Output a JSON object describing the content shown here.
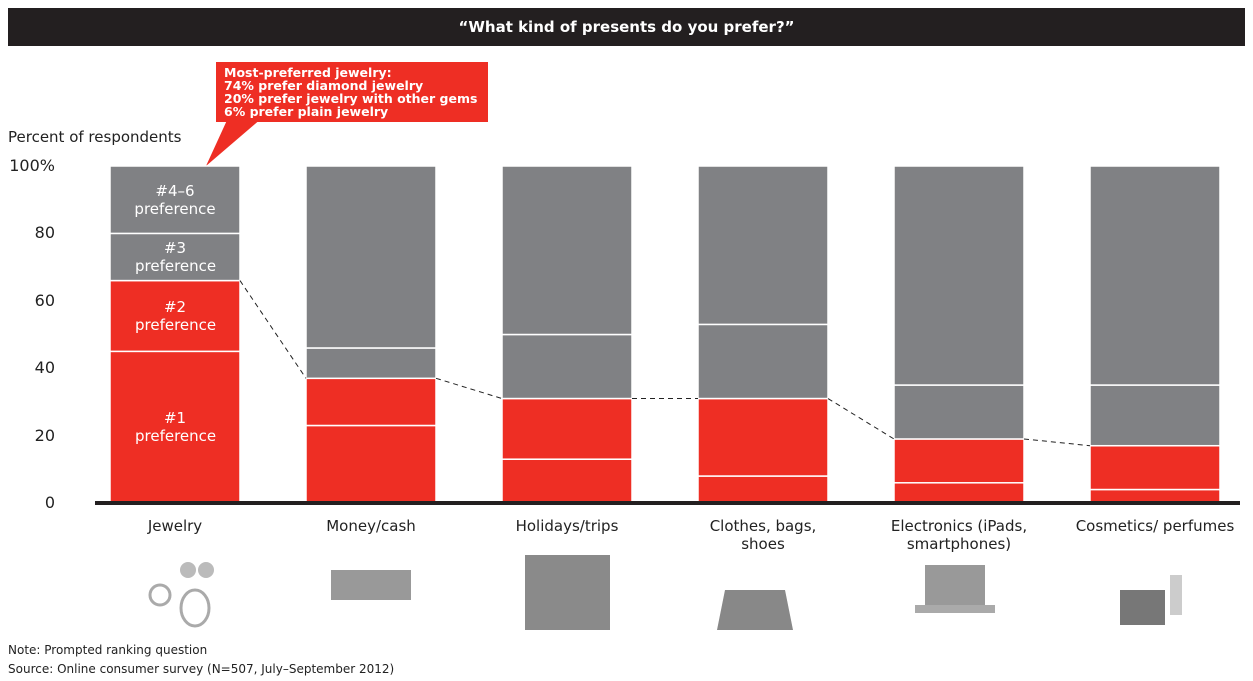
{
  "chart_data": {
    "type": "stacked_bar",
    "title": "“What kind of presents do you prefer?”",
    "y_label": "Percent of respondents",
    "categories": [
      "Jewelry",
      "Money/cash",
      "Holidays/trips",
      "Clothes, bags, shoes",
      "Electronics (iPads, smartphones)",
      "Cosmetics/ perfumes"
    ],
    "series": [
      {
        "name": "#1 preference",
        "color": "#ee2e24",
        "values": [
          45,
          23,
          13,
          8,
          6,
          4
        ]
      },
      {
        "name": "#2 preference",
        "color": "#ee2e24",
        "values": [
          21,
          14,
          18,
          23,
          13,
          13
        ]
      },
      {
        "name": "#3 preference",
        "color": "#808184",
        "values": [
          14,
          9,
          19,
          22,
          16,
          18
        ]
      },
      {
        "name": "#4–6 preference",
        "color": "#808184",
        "values": [
          20,
          54,
          50,
          47,
          65,
          65
        ]
      }
    ],
    "ylim": [
      0,
      100
    ],
    "yticks": [
      0,
      20,
      40,
      60,
      80,
      {
        "value": 100,
        "label": "100%"
      }
    ],
    "annotation": {
      "title": "Most-preferred jewelry:",
      "lines": [
        "74% prefer diamond jewelry",
        "20% prefer jewelry with other gems",
        "6% prefer plain jewelry"
      ]
    },
    "notes": [
      "Note: Prompted ranking question",
      "Source: Online consumer survey (N=507, July–September 2012)"
    ]
  }
}
